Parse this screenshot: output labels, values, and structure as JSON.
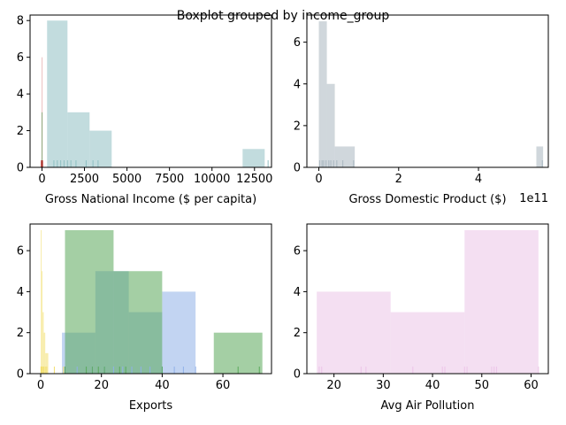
{
  "figure_title": "Boxplot grouped by income_group",
  "chart_data": [
    {
      "type": "histogram",
      "xlabel": "Gross National Income ($ per capita)",
      "ylabel": "",
      "xlim": [
        -700,
        13500
      ],
      "ylim": [
        0,
        8.3
      ],
      "xticks": [
        0,
        2500,
        5000,
        7500,
        10000,
        12500
      ],
      "xtick_labels": [
        "0",
        "2500",
        "5000",
        "7500",
        "10000",
        "12500"
      ],
      "yticks": [
        0,
        2,
        4,
        6,
        8
      ],
      "ytick_labels": [
        "0",
        "2",
        "4",
        "6",
        "8"
      ],
      "grid": false,
      "series": [
        {
          "color": "#8fbfc2",
          "bins": [
            [
              300,
              1500,
              8
            ],
            [
              1500,
              2800,
              3
            ],
            [
              2800,
              4100,
              2
            ],
            [
              11800,
              13100,
              1
            ]
          ],
          "rug": [
            700,
            900,
            1100,
            1300,
            1500,
            1700,
            2000,
            2600,
            3000,
            3300,
            13300
          ]
        },
        {
          "color": "#d98c8c",
          "bins": [
            [
              -20,
              20,
              6
            ]
          ],
          "rug": [
            -10,
            10
          ]
        },
        {
          "color": "#3a8c3a",
          "bins": [
            [
              -20,
              20,
              3
            ]
          ],
          "rug": [
            0
          ]
        },
        {
          "color": "#b22222",
          "bins": [
            [
              -60,
              60,
              0.3
            ]
          ],
          "rug": [
            -30,
            30
          ]
        }
      ]
    },
    {
      "type": "histogram",
      "xlabel": "Gross Domestic Product ($)",
      "ylabel": "",
      "offset_text": "1e11",
      "xlim": [
        -0.3,
        5.75
      ],
      "ylim": [
        0,
        7.3
      ],
      "xticks": [
        0,
        2,
        4
      ],
      "xtick_labels": [
        "0",
        "2",
        "4"
      ],
      "yticks": [
        0,
        2,
        4,
        6
      ],
      "ytick_labels": [
        "0",
        "2",
        "4",
        "6"
      ],
      "grid": false,
      "series": [
        {
          "color": "#a9b7c0",
          "bins": [
            [
              0,
              0.2,
              7
            ],
            [
              0.2,
              0.4,
              4
            ],
            [
              0.4,
              0.9,
              1
            ],
            [
              5.45,
              5.62,
              1
            ]
          ],
          "rug": [
            0.02,
            0.08,
            0.12,
            0.18,
            0.25,
            0.3,
            0.37,
            0.45,
            0.6,
            0.87,
            5.6
          ]
        }
      ]
    },
    {
      "type": "histogram",
      "xlabel": "Exports",
      "ylabel": "",
      "xlim": [
        -3.5,
        76
      ],
      "ylim": [
        0,
        7.3
      ],
      "xticks": [
        0,
        20,
        40,
        60
      ],
      "xtick_labels": [
        "0",
        "20",
        "40",
        "60"
      ],
      "yticks": [
        0,
        2,
        4,
        6
      ],
      "ytick_labels": [
        "0",
        "2",
        "4",
        "6"
      ],
      "grid": false,
      "series": [
        {
          "color": "#8fb0e8",
          "bins": [
            [
              7,
              18,
              2
            ],
            [
              18,
              29,
              5
            ],
            [
              29,
              40,
              3
            ],
            [
              40,
              51,
              4
            ]
          ],
          "rug": [
            8,
            12,
            17,
            21,
            24,
            27,
            30,
            33,
            36,
            40,
            44,
            47,
            51
          ]
        },
        {
          "color": "#f2de6b",
          "bins": [
            [
              0,
              0.3,
              7
            ],
            [
              0.3,
              0.6,
              5
            ],
            [
              0.6,
              1.0,
              3
            ],
            [
              1.0,
              1.5,
              2
            ],
            [
              1.5,
              2.5,
              1
            ]
          ],
          "rug": [
            0.1,
            0.3,
            0.6,
            1.0,
            1.5,
            2.0,
            4.5,
            7.5
          ]
        },
        {
          "color": "#5aa85a",
          "bins": [
            [
              8,
              24,
              7
            ],
            [
              24,
              40,
              5
            ],
            [
              40,
              57,
              0
            ],
            [
              57,
              73,
              2
            ]
          ],
          "rug": [
            8,
            15,
            17,
            19,
            21,
            26,
            28,
            40,
            65,
            72
          ]
        }
      ]
    },
    {
      "type": "histogram",
      "xlabel": "Avg Air Pollution",
      "ylabel": "",
      "xlim": [
        14.5,
        63.5
      ],
      "ylim": [
        0,
        7.3
      ],
      "xticks": [
        20,
        30,
        40,
        50,
        60
      ],
      "xtick_labels": [
        "20",
        "30",
        "40",
        "50",
        "60"
      ],
      "yticks": [
        0,
        2,
        4,
        6
      ],
      "ytick_labels": [
        "0",
        "2",
        "4",
        "6"
      ],
      "grid": false,
      "series": [
        {
          "color": "#ebc4e8",
          "bins": [
            [
              16.5,
              31.5,
              4
            ],
            [
              31.5,
              46.5,
              3
            ],
            [
              46.5,
              61.5,
              7
            ]
          ],
          "rug": [
            17,
            17.5,
            25.5,
            26.5,
            36,
            42,
            42.5,
            46.5,
            47,
            52,
            52.5,
            53,
            61.5
          ]
        }
      ]
    }
  ]
}
